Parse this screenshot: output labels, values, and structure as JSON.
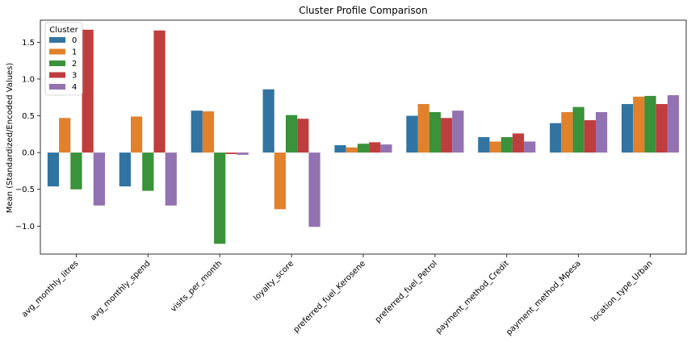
{
  "chart_data": {
    "type": "bar",
    "title": "Cluster Profile Comparison",
    "xlabel": "",
    "ylabel": "Mean (Standardized/Encoded Values)",
    "ylim": [
      -1.38,
      1.8
    ],
    "yticks": [
      -1.0,
      -0.5,
      0.0,
      0.5,
      1.0,
      1.5
    ],
    "ytick_labels": [
      "−1.0",
      "−0.5",
      "0.0",
      "0.5",
      "1.0",
      "1.5"
    ],
    "grid": false,
    "legend": {
      "title": "Cluster",
      "placement": "top-left"
    },
    "categories": [
      "avg_monthly_litres",
      "avg_monthly_spend",
      "visits_per_month",
      "loyalty_score",
      "preferred_fuel_Kerosene",
      "preferred_fuel_Petrol",
      "payment_method_Credit",
      "payment_method_Mpesa",
      "location_type_Urban"
    ],
    "series": [
      {
        "name": "0",
        "color": "#3274a1",
        "values": [
          -0.46,
          -0.46,
          0.57,
          0.86,
          0.1,
          0.5,
          0.21,
          0.4,
          0.66
        ]
      },
      {
        "name": "1",
        "color": "#e1812c",
        "values": [
          0.47,
          0.49,
          0.56,
          -0.77,
          0.07,
          0.66,
          0.15,
          0.55,
          0.76
        ]
      },
      {
        "name": "2",
        "color": "#3a923a",
        "values": [
          -0.5,
          -0.52,
          -1.24,
          0.51,
          0.12,
          0.55,
          0.21,
          0.62,
          0.77
        ]
      },
      {
        "name": "3",
        "color": "#c03d3e",
        "values": [
          1.67,
          1.66,
          -0.02,
          0.46,
          0.14,
          0.47,
          0.26,
          0.44,
          0.66
        ]
      },
      {
        "name": "4",
        "color": "#9372b2",
        "values": [
          -0.72,
          -0.72,
          -0.03,
          -1.01,
          0.11,
          0.57,
          0.15,
          0.55,
          0.78
        ]
      }
    ]
  }
}
